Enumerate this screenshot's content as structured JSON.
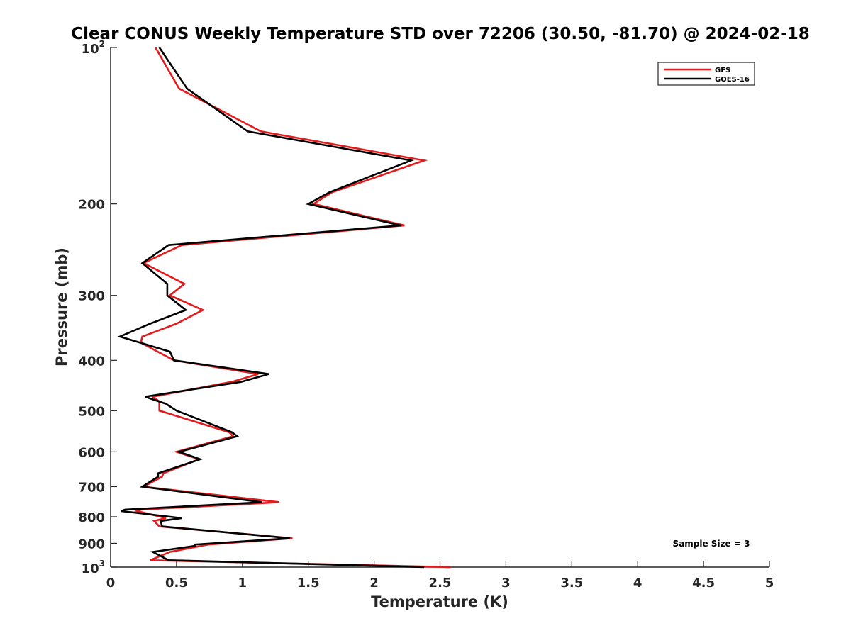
{
  "chart_data": {
    "type": "line",
    "title": "Clear CONUS Weekly Temperature STD over 72206 (30.50, -81.70) @ 2024-02-18",
    "xlabel": "Temperature (K)",
    "ylabel": "Pressure (mb)",
    "xlim": [
      0,
      5
    ],
    "ylim": [
      100,
      1000
    ],
    "y_scale": "log",
    "y_reversed": true,
    "grid": false,
    "legend_position": "top-right",
    "x_ticks": [
      0,
      0.5,
      1,
      1.5,
      2,
      2.5,
      3,
      3.5,
      4,
      4.5,
      5
    ],
    "x_tick_labels": [
      "0",
      "0.5",
      "1",
      "1.5",
      "2",
      "2.5",
      "3",
      "3.5",
      "4",
      "4.5",
      "5"
    ],
    "y_ticks": [
      {
        "value": 100,
        "base": "10",
        "exp": "2"
      },
      {
        "value": 200,
        "label": "200"
      },
      {
        "value": 300,
        "label": "300"
      },
      {
        "value": 400,
        "label": "400"
      },
      {
        "value": 500,
        "label": "500"
      },
      {
        "value": 600,
        "label": "600"
      },
      {
        "value": 700,
        "label": "700"
      },
      {
        "value": 800,
        "label": "800"
      },
      {
        "value": 900,
        "label": "900"
      },
      {
        "value": 1000,
        "base": "10",
        "exp": "3"
      }
    ],
    "annotation": "Sample Size = 3",
    "series": [
      {
        "name": "GFS",
        "color": "#e41a1c",
        "points": [
          [
            0.34,
            100
          ],
          [
            0.52,
            120
          ],
          [
            1.14,
            145
          ],
          [
            2.38,
            165
          ],
          [
            1.68,
            190
          ],
          [
            1.54,
            200
          ],
          [
            2.23,
            220
          ],
          [
            0.54,
            240
          ],
          [
            0.25,
            260
          ],
          [
            0.56,
            285
          ],
          [
            0.45,
            300
          ],
          [
            0.7,
            320
          ],
          [
            0.5,
            340
          ],
          [
            0.24,
            360
          ],
          [
            0.23,
            370
          ],
          [
            0.48,
            400
          ],
          [
            1.12,
            425
          ],
          [
            0.92,
            440
          ],
          [
            0.32,
            470
          ],
          [
            0.37,
            480
          ],
          [
            0.37,
            500
          ],
          [
            0.9,
            550
          ],
          [
            0.93,
            560
          ],
          [
            0.5,
            600
          ],
          [
            0.67,
            620
          ],
          [
            0.4,
            660
          ],
          [
            0.39,
            670
          ],
          [
            0.25,
            700
          ],
          [
            1.28,
            750
          ],
          [
            0.23,
            775
          ],
          [
            0.2,
            780
          ],
          [
            0.42,
            805
          ],
          [
            0.33,
            815
          ],
          [
            0.37,
            835
          ],
          [
            1.38,
            880
          ],
          [
            0.74,
            905
          ],
          [
            0.69,
            910
          ],
          [
            0.45,
            935
          ],
          [
            0.3,
            970
          ],
          [
            2.58,
            1000
          ]
        ]
      },
      {
        "name": "GOES-16",
        "color": "#000000",
        "points": [
          [
            0.37,
            100
          ],
          [
            0.58,
            120
          ],
          [
            1.04,
            145
          ],
          [
            2.28,
            165
          ],
          [
            1.66,
            190
          ],
          [
            1.5,
            200
          ],
          [
            2.2,
            220
          ],
          [
            0.44,
            240
          ],
          [
            0.24,
            260
          ],
          [
            0.43,
            285
          ],
          [
            0.43,
            300
          ],
          [
            0.57,
            320
          ],
          [
            0.3,
            340
          ],
          [
            0.07,
            360
          ],
          [
            0.45,
            385
          ],
          [
            0.48,
            400
          ],
          [
            1.2,
            425
          ],
          [
            0.99,
            440
          ],
          [
            0.26,
            470
          ],
          [
            0.42,
            485
          ],
          [
            0.5,
            500
          ],
          [
            0.92,
            550
          ],
          [
            0.96,
            560
          ],
          [
            0.52,
            600
          ],
          [
            0.68,
            620
          ],
          [
            0.36,
            660
          ],
          [
            0.36,
            670
          ],
          [
            0.24,
            700
          ],
          [
            1.15,
            750
          ],
          [
            0.11,
            775
          ],
          [
            0.08,
            780
          ],
          [
            0.54,
            805
          ],
          [
            0.38,
            815
          ],
          [
            0.39,
            835
          ],
          [
            1.36,
            880
          ],
          [
            0.64,
            905
          ],
          [
            0.64,
            910
          ],
          [
            0.32,
            935
          ],
          [
            0.44,
            970
          ],
          [
            2.38,
            1000
          ]
        ]
      }
    ]
  }
}
